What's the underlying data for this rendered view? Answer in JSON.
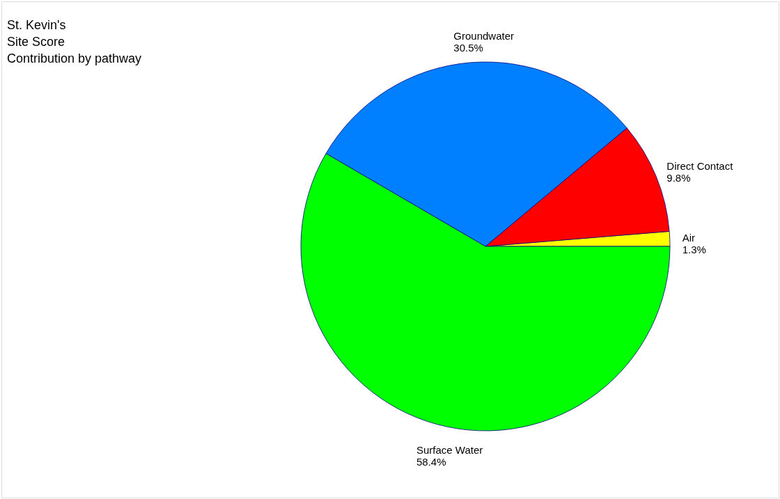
{
  "chart_data": {
    "type": "pie",
    "title": "St. Kevin's\nSite Score\nContribution by pathway",
    "categories": [
      "Air",
      "Direct Contact",
      "Groundwater",
      "Surface Water"
    ],
    "values": [
      1.3,
      9.8,
      30.5,
      58.4
    ],
    "colors": [
      "#ffff00",
      "#ff0000",
      "#0080ff",
      "#00ff00"
    ],
    "value_labels": [
      "1.3%",
      "9.8%",
      "30.5%",
      "58.4%"
    ]
  }
}
